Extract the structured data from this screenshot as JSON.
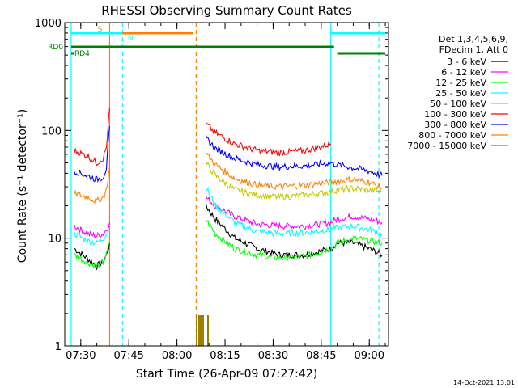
{
  "chart_data": {
    "type": "line",
    "title": "RHESSI Observing Summary Count Rates",
    "xlabel": "Start Time (26-Apr-09 07:27:42)",
    "ylabel": "Count Rate (s⁻¹ detector⁻¹)",
    "yscale": "log",
    "ylim": [
      1,
      1000
    ],
    "xlim": [
      "07:25",
      "09:06"
    ],
    "x_ticks": [
      "07:30",
      "07:45",
      "08:00",
      "08:15",
      "08:30",
      "08:45",
      "09:00"
    ],
    "y_ticks": [
      "1",
      "10",
      "100",
      "1000"
    ],
    "legend_position": "top-right",
    "legend_header": [
      "Det 1,3,4,5,6,9,",
      "FDecim 1, Att 0"
    ],
    "timestamp": "14-Oct-2021 13:01",
    "flags": [
      {
        "label": "S",
        "start": "07:38",
        "end": "08:05",
        "color": "#ff8000",
        "level": "upper"
      },
      {
        "label": "N",
        "start": "07:27",
        "end": "07:43",
        "color": "#00ffff",
        "level": "upper"
      },
      {
        "label": "",
        "start": "08:48",
        "end": "09:05",
        "color": "#00ffff",
        "level": "upper"
      },
      {
        "label": "RD0",
        "start": "07:27",
        "end": "08:49",
        "color": "#008000",
        "level": "middle"
      },
      {
        "label": "RD4",
        "start": "07:27",
        "end": "07:28",
        "color": "#008000",
        "level": "lower"
      },
      {
        "label": "",
        "start": "08:50",
        "end": "09:05",
        "color": "#008000",
        "level": "lower"
      }
    ],
    "vlines": [
      {
        "time": "07:27",
        "color": "#00ffff",
        "style": "solid"
      },
      {
        "time": "07:43",
        "color": "#00ffff",
        "style": "dashed"
      },
      {
        "time": "07:39",
        "color": "#ff8000",
        "style": "solid"
      },
      {
        "time": "08:06",
        "color": "#ff8000",
        "style": "dashed"
      },
      {
        "time": "08:48",
        "color": "#00ffff",
        "style": "solid"
      },
      {
        "time": "09:03",
        "color": "#00ffff",
        "style": "dashed"
      }
    ],
    "series": [
      {
        "name": "3 - 6 keV",
        "color": "#000000",
        "x": [
          "07:28",
          "07:32",
          "07:35",
          "07:37",
          "07:38",
          "07:39",
          "07:40",
          "08:07",
          "08:09",
          "08:12",
          "08:18",
          "08:25",
          "08:32",
          "08:40",
          "08:48",
          "08:50",
          "08:55",
          "09:00",
          "09:04"
        ],
        "y": [
          8,
          6.5,
          5.5,
          6,
          7,
          9,
          null,
          null,
          20,
          15,
          10,
          8,
          7,
          7,
          8,
          9,
          9,
          8,
          7
        ]
      },
      {
        "name": "6 - 12 keV",
        "color": "#ff00ff",
        "x": [
          "07:28",
          "07:32",
          "07:35",
          "07:37",
          "07:38",
          "07:39",
          "07:40",
          "08:07",
          "08:09",
          "08:12",
          "08:18",
          "08:25",
          "08:32",
          "08:40",
          "08:48",
          "08:50",
          "08:55",
          "09:00",
          "09:04"
        ],
        "y": [
          13,
          11,
          10.5,
          11,
          12,
          14,
          null,
          null,
          24,
          20,
          16,
          13.5,
          13,
          13,
          14,
          15,
          16,
          15,
          14
        ]
      },
      {
        "name": "12 - 25 keV",
        "color": "#00ff00",
        "x": [
          "07:28",
          "07:32",
          "07:35",
          "07:37",
          "07:38",
          "07:39",
          "07:40",
          "08:07",
          "08:09",
          "08:12",
          "08:18",
          "08:25",
          "08:32",
          "08:40",
          "08:48",
          "08:50",
          "08:55",
          "09:00",
          "09:04"
        ],
        "y": [
          7,
          6,
          5.5,
          6,
          7,
          9,
          null,
          null,
          15,
          11,
          8,
          7,
          6.5,
          6.8,
          8,
          9,
          10,
          9.5,
          9
        ]
      },
      {
        "name": "25 - 50 keV",
        "color": "#00ffff",
        "x": [
          "07:28",
          "07:32",
          "07:35",
          "07:37",
          "07:38",
          "07:39",
          "07:40",
          "08:07",
          "08:09",
          "08:12",
          "08:18",
          "08:25",
          "08:32",
          "08:40",
          "08:48",
          "08:50",
          "08:55",
          "09:00",
          "09:04"
        ],
        "y": [
          11,
          9.5,
          9,
          10,
          11,
          12,
          null,
          null,
          30,
          20,
          14,
          11.5,
          11,
          11.3,
          12,
          12.5,
          13,
          12,
          11
        ]
      },
      {
        "name": "50 - 100 keV",
        "color": "#c8c800",
        "x": [
          "07:28",
          "07:32",
          "07:35",
          "07:37",
          "07:38",
          "07:39",
          "07:40",
          "08:07",
          "08:09",
          "08:12",
          "08:18",
          "08:25",
          "08:32",
          "08:40",
          "08:48",
          "08:50",
          "08:55",
          "09:00",
          "09:04"
        ],
        "y": [
          null,
          null,
          null,
          null,
          null,
          null,
          null,
          null,
          50,
          38,
          28,
          25,
          24,
          25,
          27,
          28,
          29,
          28,
          27
        ]
      },
      {
        "name": "100 - 300 keV",
        "color": "#ff0000",
        "x": [
          "07:28",
          "07:32",
          "07:35",
          "07:37",
          "07:38",
          "07:39",
          "07:40",
          "08:07",
          "08:09",
          "08:12",
          "08:18",
          "08:25",
          "08:32",
          "08:40",
          "08:48",
          "08:50",
          "08:55",
          "09:00",
          "09:04"
        ],
        "y": [
          65,
          58,
          50,
          55,
          70,
          160,
          null,
          null,
          115,
          95,
          75,
          65,
          62,
          65,
          75,
          null,
          null,
          null,
          null
        ]
      },
      {
        "name": "300 - 800 keV",
        "color": "#0000ff",
        "x": [
          "07:28",
          "07:32",
          "07:35",
          "07:37",
          "07:38",
          "07:39",
          "07:40",
          "08:07",
          "08:09",
          "08:12",
          "08:18",
          "08:25",
          "08:32",
          "08:40",
          "08:48",
          "08:50",
          "08:55",
          "09:00",
          "09:04"
        ],
        "y": [
          42,
          38,
          35,
          37,
          45,
          110,
          null,
          null,
          85,
          68,
          55,
          48,
          46,
          47,
          50,
          48,
          45,
          42,
          38
        ]
      },
      {
        "name": "800 - 7000 keV",
        "color": "#ff8000",
        "x": [
          "07:28",
          "07:32",
          "07:35",
          "07:37",
          "07:38",
          "07:39",
          "07:40",
          "08:07",
          "08:09",
          "08:12",
          "08:18",
          "08:25",
          "08:32",
          "08:40",
          "08:48",
          "08:50",
          "08:55",
          "09:00",
          "09:04"
        ],
        "y": [
          26,
          24,
          22,
          24,
          28,
          45,
          null,
          null,
          62,
          48,
          36,
          31,
          30,
          31,
          33,
          34,
          35,
          33,
          29
        ]
      },
      {
        "name": "7000 - 15000 keV",
        "color": "#a08000",
        "x": [],
        "y": []
      }
    ]
  }
}
